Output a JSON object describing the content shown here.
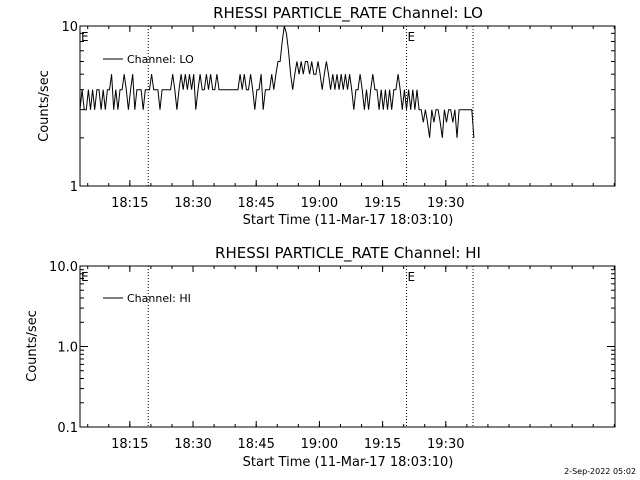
{
  "footer_timestamp": "2-Sep-2022 05:02",
  "chart_data": [
    {
      "type": "line",
      "title": "RHESSI PARTICLE_RATE Channel: LO",
      "xlabel": "Start Time (11-Mar-17 18:03:10)",
      "ylabel": "Counts/sec",
      "yscale": "log",
      "ylim": [
        1,
        10
      ],
      "yticks": [
        "1",
        "10"
      ],
      "xlim_min": [
        0,
        127
      ],
      "xticks": [
        {
          "label": "18:15",
          "min": 11.83
        },
        {
          "label": "18:30",
          "min": 26.83
        },
        {
          "label": "18:45",
          "min": 41.83
        },
        {
          "label": "19:00",
          "min": 56.83
        },
        {
          "label": "19:15",
          "min": 71.83
        },
        {
          "label": "19:30",
          "min": 86.83
        }
      ],
      "legend": {
        "label": "Channel: LO",
        "position": "top-left"
      },
      "markers": [
        {
          "text": "E",
          "min": 0
        },
        {
          "text": "E",
          "min": 77.5
        }
      ],
      "vlines_min": [
        16.2,
        77.5,
        93.3
      ],
      "series": [
        {
          "name": "Channel: LO",
          "x": [
            0.0,
            0.5,
            1.0,
            1.5,
            2.0,
            2.5,
            3.0,
            3.5,
            4.0,
            4.5,
            5.0,
            5.5,
            6.0,
            6.5,
            7.0,
            7.5,
            8.0,
            8.5,
            9.0,
            9.5,
            10.0,
            10.5,
            11.0,
            11.5,
            12.0,
            12.5,
            13.0,
            13.5,
            14.0,
            14.5,
            15.0,
            15.5,
            16.0,
            16.5,
            17.0,
            17.5,
            18.0,
            18.5,
            19.0,
            19.5,
            20.0,
            20.5,
            21.0,
            21.5,
            22.0,
            22.5,
            23.0,
            23.5,
            24.0,
            24.5,
            25.0,
            25.5,
            26.0,
            26.5,
            27.0,
            27.5,
            28.0,
            28.5,
            29.0,
            29.5,
            30.0,
            30.5,
            31.0,
            31.5,
            32.0,
            32.5,
            33.0,
            33.5,
            34.0,
            34.5,
            35.0,
            35.5,
            36.0,
            36.5,
            37.0,
            37.5,
            38.0,
            38.5,
            39.0,
            39.5,
            40.0,
            40.5,
            41.0,
            41.5,
            42.0,
            42.5,
            43.0,
            43.5,
            44.0,
            44.5,
            45.0,
            45.5,
            46.0,
            46.5,
            47.0,
            47.5,
            48.0,
            48.5,
            49.0,
            49.5,
            50.0,
            50.5,
            51.0,
            51.5,
            52.0,
            52.5,
            53.0,
            53.5,
            54.0,
            54.5,
            55.0,
            55.5,
            56.0,
            56.5,
            57.0,
            57.5,
            58.0,
            58.5,
            59.0,
            59.5,
            60.0,
            60.5,
            61.0,
            61.5,
            62.0,
            62.5,
            63.0,
            63.5,
            64.0,
            64.5,
            65.0,
            65.5,
            66.0,
            66.5,
            67.0,
            67.5,
            68.0,
            68.5,
            69.0,
            69.5,
            70.0,
            70.5,
            71.0,
            71.5,
            72.0,
            72.5,
            73.0,
            73.5,
            74.0,
            74.5,
            75.0,
            75.5,
            76.0,
            76.5,
            77.0,
            77.5,
            78.0,
            78.5,
            79.0,
            79.5,
            80.0,
            80.5,
            81.0,
            81.5,
            82.0,
            82.5,
            83.0,
            83.5,
            84.0,
            84.5,
            85.0,
            85.5,
            86.0,
            86.5,
            87.0,
            87.5,
            88.0,
            88.5,
            89.0,
            89.5,
            90.0,
            90.5,
            91.0,
            91.5,
            92.0,
            92.5,
            93.0,
            93.5
          ],
          "values": [
            3.0,
            4.0,
            3.0,
            3.0,
            4.0,
            3.0,
            4.0,
            3.0,
            4.0,
            4.0,
            3.0,
            4.0,
            3.0,
            4.0,
            4.0,
            5.0,
            3.0,
            4.0,
            3.0,
            4.0,
            4.0,
            5.0,
            4.0,
            3.0,
            4.0,
            5.0,
            3.0,
            4.0,
            4.0,
            4.0,
            3.0,
            4.0,
            4.0,
            4.0,
            5.0,
            4.0,
            4.0,
            4.0,
            3.0,
            4.0,
            4.0,
            4.0,
            4.0,
            4.0,
            5.0,
            4.0,
            3.0,
            4.0,
            5.0,
            4.0,
            5.0,
            4.0,
            5.0,
            4.0,
            5.0,
            3.0,
            4.0,
            5.0,
            4.0,
            4.0,
            5.0,
            4.0,
            5.0,
            4.0,
            4.0,
            5.0,
            4.0,
            4.0,
            4.0,
            4.0,
            4.0,
            4.0,
            4.0,
            4.0,
            4.0,
            4.0,
            5.0,
            4.0,
            5.0,
            4.0,
            4.0,
            5.0,
            4.0,
            3.0,
            4.0,
            4.0,
            5.0,
            3.0,
            4.0,
            4.0,
            4.0,
            5.0,
            4.0,
            5.0,
            6.0,
            6.0,
            8.0,
            10.0,
            9.0,
            7.0,
            5.0,
            4.0,
            5.0,
            6.0,
            5.0,
            6.0,
            5.0,
            6.0,
            6.0,
            5.0,
            6.0,
            5.0,
            5.0,
            6.0,
            5.0,
            4.0,
            5.0,
            6.0,
            5.0,
            4.0,
            5.0,
            4.0,
            5.0,
            4.0,
            5.0,
            4.0,
            5.0,
            4.0,
            5.0,
            4.0,
            3.0,
            4.0,
            4.0,
            5.0,
            4.0,
            3.0,
            4.0,
            3.0,
            4.0,
            5.0,
            4.0,
            4.0,
            3.0,
            4.0,
            3.0,
            4.0,
            3.0,
            4.0,
            3.0,
            4.0,
            4.0,
            5.0,
            4.0,
            3.0,
            4.0,
            3.0,
            4.0,
            3.0,
            4.0,
            3.0,
            4.0,
            3.0,
            3.0,
            2.5,
            3.0,
            2.5,
            2.0,
            3.0,
            2.5,
            3.0,
            3.0,
            2.5,
            2.0,
            3.0,
            2.5,
            3.0,
            3.0,
            2.5,
            3.0,
            2.0,
            3.0,
            3.0,
            3.0,
            3.0,
            3.0,
            3.0,
            3.0,
            2.0
          ]
        }
      ]
    },
    {
      "type": "line",
      "title": "RHESSI PARTICLE_RATE Channel: HI",
      "xlabel": "Start Time (11-Mar-17 18:03:10)",
      "ylabel": "Counts/sec",
      "yscale": "log",
      "ylim": [
        0.1,
        10
      ],
      "yticks": [
        "0.1",
        "1.0",
        "10.0"
      ],
      "xlim_min": [
        0,
        127
      ],
      "xticks": [
        {
          "label": "18:15",
          "min": 11.83
        },
        {
          "label": "18:30",
          "min": 26.83
        },
        {
          "label": "18:45",
          "min": 41.83
        },
        {
          "label": "19:00",
          "min": 56.83
        },
        {
          "label": "19:15",
          "min": 71.83
        },
        {
          "label": "19:30",
          "min": 86.83
        }
      ],
      "legend": {
        "label": "Channel: HI",
        "position": "top-left"
      },
      "markers": [
        {
          "text": "E",
          "min": 0
        },
        {
          "text": "E",
          "min": 77.5
        }
      ],
      "vlines_min": [
        16.2,
        77.5,
        93.3
      ],
      "series": [
        {
          "name": "Channel: HI",
          "x": [],
          "values": []
        }
      ]
    }
  ]
}
